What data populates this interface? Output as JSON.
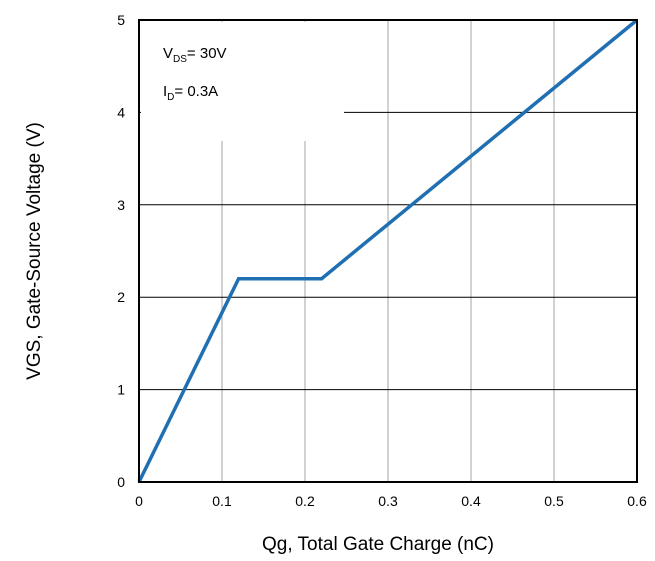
{
  "chart_data": {
    "type": "line",
    "title": "",
    "xlabel": "Qg, Total Gate Charge (nC)",
    "ylabel": "VGS, Gate-Source Voltage (V)",
    "xlim": [
      0,
      0.6
    ],
    "ylim": [
      0,
      5
    ],
    "x_ticks": [
      "0",
      "0.1",
      "0.2",
      "0.3",
      "0.4",
      "0.5",
      "0.6"
    ],
    "y_ticks": [
      "0",
      "1",
      "2",
      "3",
      "4",
      "5"
    ],
    "grid": true,
    "series": [
      {
        "color": "#1f6fb2",
        "x": [
          0,
          0.12,
          0.22,
          0.6
        ],
        "y": [
          0,
          2.2,
          2.2,
          5
        ]
      }
    ],
    "annotations": {
      "line1": {
        "main": "V",
        "sub": "DS",
        "rest": "= 30V"
      },
      "line2": {
        "main": "I",
        "sub": "D",
        "rest": "= 0.3A"
      }
    }
  }
}
